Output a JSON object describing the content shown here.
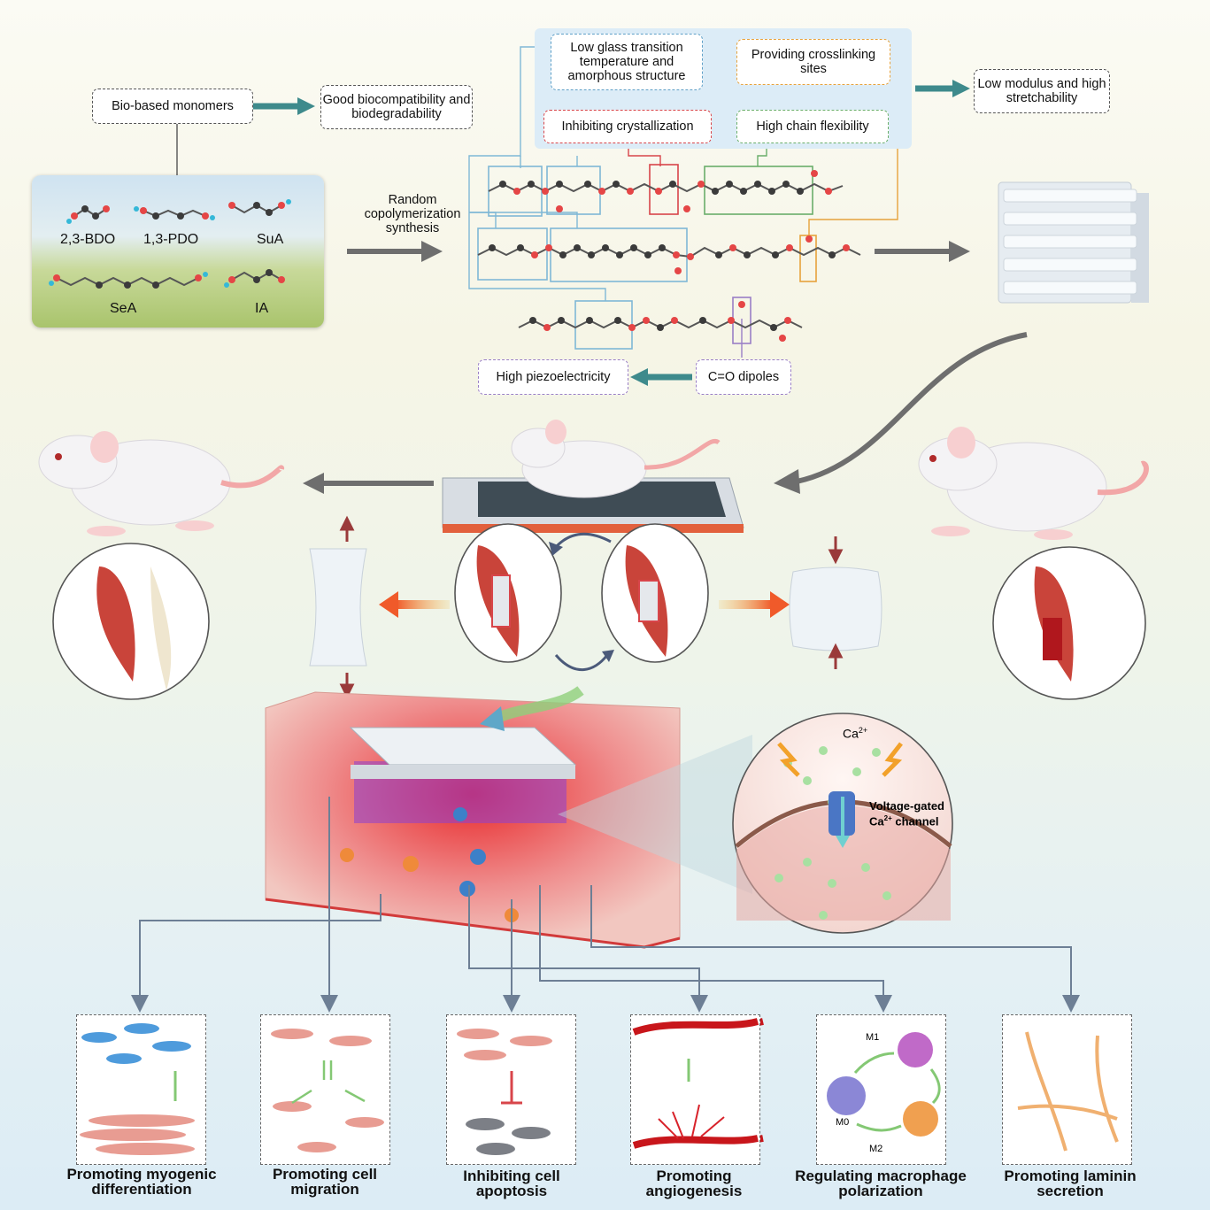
{
  "top": {
    "bio_monomers": "Bio-based monomers",
    "biocompat": "Good biocompatibility and biodegradability",
    "low_tg": "Low glass transition temperature and amorphous structure",
    "crosslink": "Providing crosslinking sites",
    "inhibit_cryst": "Inhibiting crystallization",
    "chain_flex": "High chain flexibility",
    "low_modulus": "Low modulus and high stretchability",
    "random_copoly": "Random copolymerization synthesis",
    "high_piezo": "High piezoelectricity",
    "co_dipoles": "C=O dipoles"
  },
  "monomers": [
    "2,3-BDO",
    "1,3-PDO",
    "SuA",
    "SeA",
    "IA"
  ],
  "tissue": {
    "ca": "Ca",
    "ca_sup": "2+",
    "channel_line1": "Voltage-gated",
    "channel_line2_pre": "Ca",
    "channel_line2_post": " channel"
  },
  "macrophage": {
    "m0": "M0",
    "m1": "M1",
    "m2": "M2"
  },
  "outcomes": [
    "Promoting myogenic differentiation",
    "Promoting cell migration",
    "Inhibiting cell apoptosis",
    "Promoting angiogenesis",
    "Regulating macrophage polarization",
    "Promoting laminin secretion"
  ],
  "colors": {
    "teal_arrow": "#3e8a8c",
    "gray_arrow": "#6e6e6e",
    "blue_box": "#7fb8d6",
    "red_box": "#d8454a",
    "green_box": "#6aae6a",
    "orange_box": "#e6a23c",
    "purple_box": "#9a7fc6",
    "connector": "#6d7f95"
  }
}
